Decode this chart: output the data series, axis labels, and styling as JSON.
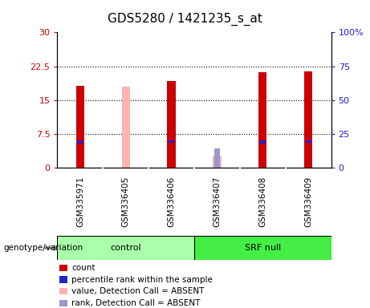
{
  "title": "GDS5280 / 1421235_s_at",
  "samples": [
    "GSM335971",
    "GSM336405",
    "GSM336406",
    "GSM336407",
    "GSM336408",
    "GSM336409"
  ],
  "groups": [
    "control",
    "control",
    "control",
    "SRF null",
    "SRF null",
    "SRF null"
  ],
  "count_values": [
    18.2,
    null,
    19.2,
    null,
    21.1,
    21.4
  ],
  "rank_values": [
    19.0,
    null,
    19.5,
    null,
    19.0,
    19.5
  ],
  "absent_value_values": [
    null,
    18.0,
    null,
    2.7,
    null,
    null
  ],
  "absent_rank_values": [
    null,
    null,
    null,
    13.0,
    null,
    null
  ],
  "count_color": "#cc0000",
  "rank_color": "#2222cc",
  "absent_value_color": "#ffb3b3",
  "absent_rank_color": "#9999cc",
  "ylim_left": [
    0,
    30
  ],
  "ylim_right": [
    0,
    100
  ],
  "yticks_left": [
    0,
    7.5,
    15,
    22.5,
    30
  ],
  "yticks_right": [
    0,
    25,
    50,
    75,
    100
  ],
  "ytick_labels_left": [
    "0",
    "7.5",
    "15",
    "22.5",
    "30"
  ],
  "ytick_labels_right": [
    "0",
    "25",
    "50",
    "75",
    "100%"
  ],
  "group_colors": {
    "control": "#aaffaa",
    "SRF null": "#44ee44"
  },
  "group_label": "genotype/variation",
  "legend_items": [
    {
      "label": "count",
      "color": "#cc0000"
    },
    {
      "label": "percentile rank within the sample",
      "color": "#2222cc"
    },
    {
      "label": "value, Detection Call = ABSENT",
      "color": "#ffb3b3"
    },
    {
      "label": "rank, Detection Call = ABSENT",
      "color": "#9999cc"
    }
  ],
  "bar_width": 0.18,
  "rank_bar_width": 0.12,
  "absent_bar_width": 0.18,
  "plot_bg": "#ffffff",
  "tick_area_bg": "#d0d0d0",
  "figure_bg": "#ffffff"
}
